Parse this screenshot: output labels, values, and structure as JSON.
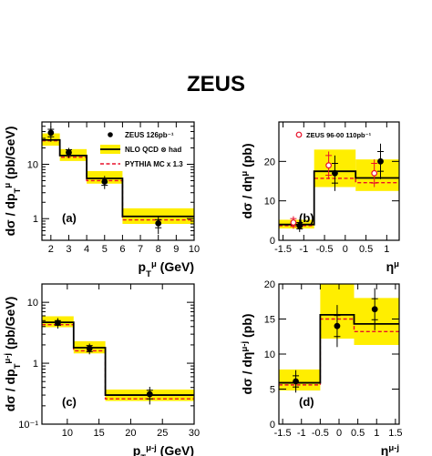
{
  "figure": {
    "title": "ZEUS"
  },
  "chart_data": [
    {
      "id": "a",
      "type": "line",
      "panel_label": "(a)",
      "ylabel": "dσ / dp_T^μ (pb/GeV)",
      "xlabel": "p_T^μ (GeV)",
      "x_scale": "linear",
      "y_scale": "log",
      "xlim": [
        1.5,
        10
      ],
      "ylim": [
        0.4,
        60
      ],
      "xticks": [
        2,
        3,
        4,
        5,
        6,
        7,
        8,
        9,
        10
      ],
      "yticks": [
        1,
        10
      ],
      "legend": {
        "placement": "top-right",
        "entries": [
          {
            "label": "ZEUS 126pb⁻¹",
            "style": "filled-marker"
          },
          {
            "label": "NLO QCD ⊗ had",
            "style": "black-line-yellow-band"
          },
          {
            "label": "PYTHIA MC x 1.3",
            "style": "red-dashed"
          }
        ]
      },
      "bins": [
        [
          1.5,
          2.5
        ],
        [
          2.5,
          4
        ],
        [
          4,
          6
        ],
        [
          6,
          10
        ]
      ],
      "series": [
        {
          "name": "NLO QCD ⊗ had",
          "values": [
            28,
            14.5,
            5.5,
            1.1
          ],
          "band_low": [
            22,
            11.5,
            4.4,
            0.8
          ],
          "band_high": [
            37,
            19,
            7.5,
            1.55
          ]
        },
        {
          "name": "PYTHIA MC x 1.3",
          "values": [
            27,
            13.5,
            5.0,
            0.95
          ]
        },
        {
          "name": "ZEUS 126pb⁻¹",
          "x": [
            2.0,
            3.0,
            5.0,
            8.0
          ],
          "values": [
            38,
            16.5,
            4.8,
            0.82
          ],
          "err_stat": [
            6,
            2,
            0.7,
            0.14
          ],
          "err_tot": [
            12,
            3.5,
            1.3,
            0.3
          ]
        }
      ]
    },
    {
      "id": "b",
      "type": "line",
      "panel_label": "(b)",
      "ylabel": "dσ / dη^μ (pb)",
      "xlabel": "η^μ",
      "x_scale": "linear",
      "y_scale": "linear",
      "xlim": [
        -1.6,
        1.3
      ],
      "ylim": [
        0,
        30
      ],
      "xticks": [
        -1.5,
        -1,
        -0.5,
        0,
        0.5,
        1
      ],
      "yticks": [
        0,
        10,
        20
      ],
      "legend": {
        "placement": "top-right",
        "entries": [
          {
            "label": "ZEUS 96-00 110pb⁻¹",
            "style": "open-marker"
          }
        ]
      },
      "bins": [
        [
          -1.6,
          -0.75
        ],
        [
          -0.75,
          0.25
        ],
        [
          0.25,
          1.3
        ]
      ],
      "series": [
        {
          "name": "NLO QCD ⊗ had",
          "values": [
            4.0,
            17.5,
            15.8
          ],
          "band_low": [
            3.0,
            13.5,
            12.5
          ],
          "band_high": [
            5.2,
            23,
            20.5
          ]
        },
        {
          "name": "PYTHIA MC x 1.3",
          "values": [
            3.7,
            15.7,
            14.6
          ]
        },
        {
          "name": "ZEUS 126pb⁻¹",
          "x": [
            -1.1,
            -0.25,
            0.85
          ],
          "values": [
            3.7,
            17.0,
            20.0
          ],
          "err_stat": [
            0.8,
            2.5,
            2.5
          ],
          "err_tot": [
            1.6,
            4.5,
            4.5
          ]
        },
        {
          "name": "ZEUS 96-00 110pb⁻¹",
          "x": [
            -1.25,
            -0.4,
            0.7
          ],
          "values": [
            4.5,
            19.0,
            17.0
          ],
          "err_stat": [
            1.0,
            2.5,
            2.5
          ],
          "err_tot": [
            1.6,
            3.5,
            3.5
          ]
        }
      ]
    },
    {
      "id": "c",
      "type": "line",
      "panel_label": "(c)",
      "ylabel": "dσ / dp_T^μ-j (pb/GeV)",
      "xlabel": "p_T^μ-j (GeV)",
      "x_scale": "linear",
      "y_scale": "log",
      "xlim": [
        6,
        30
      ],
      "ylim": [
        0.1,
        20
      ],
      "xticks": [
        10,
        15,
        20,
        25,
        30
      ],
      "yticks": [
        0.1,
        1,
        10
      ],
      "ytick_labels": [
        "10⁻¹",
        "1",
        "10"
      ],
      "bins": [
        [
          6,
          11
        ],
        [
          11,
          16
        ],
        [
          16,
          30
        ]
      ],
      "series": [
        {
          "name": "NLO QCD ⊗ had",
          "values": [
            4.7,
            1.8,
            0.3
          ],
          "band_low": [
            3.9,
            1.45,
            0.24
          ],
          "band_high": [
            5.9,
            2.3,
            0.37
          ]
        },
        {
          "name": "PYTHIA MC x 1.3",
          "values": [
            4.3,
            1.6,
            0.26
          ]
        },
        {
          "name": "ZEUS 126pb⁻¹",
          "x": [
            8.5,
            13.5,
            23.0
          ],
          "values": [
            4.6,
            1.75,
            0.31
          ],
          "err_stat": [
            0.4,
            0.2,
            0.05
          ],
          "err_tot": [
            0.9,
            0.35,
            0.1
          ]
        }
      ]
    },
    {
      "id": "d",
      "type": "line",
      "panel_label": "(d)",
      "ylabel": "dσ / dη^μ-j (pb)",
      "xlabel": "η^μ-j",
      "x_scale": "linear",
      "y_scale": "linear",
      "xlim": [
        -1.6,
        1.6
      ],
      "ylim": [
        0,
        20
      ],
      "xticks": [
        -1.5,
        -1,
        -0.5,
        0,
        0.5,
        1,
        1.5
      ],
      "yticks": [
        0,
        5,
        10,
        15,
        20
      ],
      "bins": [
        [
          -1.6,
          -0.5
        ],
        [
          -0.5,
          0.4
        ],
        [
          0.4,
          1.6
        ]
      ],
      "series": [
        {
          "name": "NLO QCD ⊗ had",
          "values": [
            5.9,
            15.6,
            14.3
          ],
          "band_low": [
            4.8,
            12.2,
            11.3
          ],
          "band_high": [
            7.8,
            20.0,
            18.0
          ]
        },
        {
          "name": "PYTHIA MC x 1.3",
          "values": [
            5.6,
            15.0,
            13.2
          ]
        },
        {
          "name": "ZEUS 126pb⁻¹",
          "x": [
            -1.15,
            -0.05,
            0.95
          ],
          "values": [
            6.1,
            14.0,
            16.4
          ],
          "err_stat": [
            0.8,
            1.5,
            1.5
          ],
          "err_tot": [
            1.6,
            3.0,
            3.0
          ]
        }
      ]
    }
  ]
}
